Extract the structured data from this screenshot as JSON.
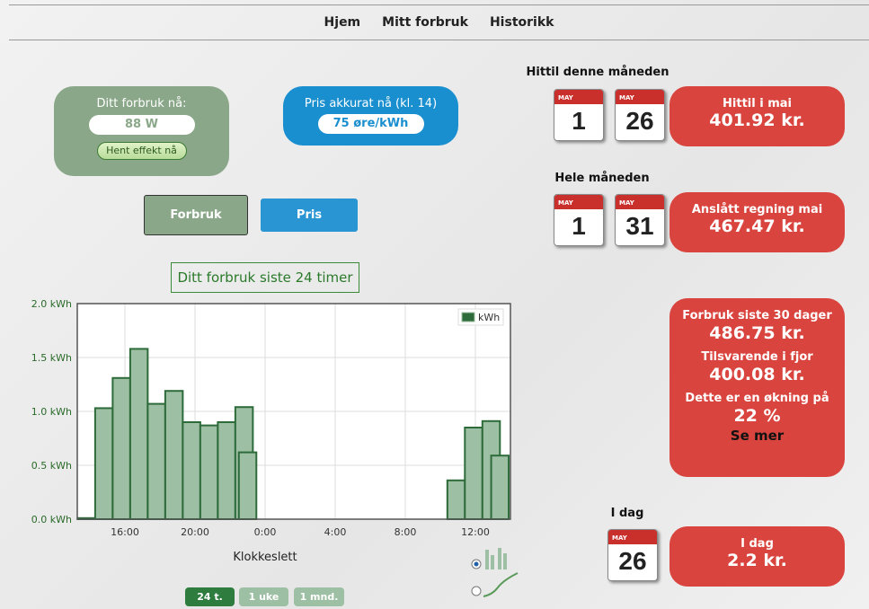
{
  "nav": [
    "Hjem",
    "Mitt forbruk",
    "Historikk"
  ],
  "consumption": {
    "label": "Ditt forbruk nå:",
    "value": "88 W",
    "button": "Hent effekt nå"
  },
  "price": {
    "label": "Pris akkurat nå (kl. 14)",
    "value": "75 øre/kWh"
  },
  "tabs": [
    "Forbruk",
    "Pris"
  ],
  "range_buttons": [
    "24 t.",
    "1 uke",
    "1 mnd."
  ],
  "month_to_date": {
    "heading": "Hittil denne måneden",
    "calendars": [
      {
        "month": "MAY",
        "day": "1"
      },
      {
        "month": "MAY",
        "day": "26"
      }
    ],
    "box": [
      "Hittil i mai",
      "401.92 kr."
    ]
  },
  "whole_month": {
    "heading": "Hele måneden",
    "calendars": [
      {
        "month": "MAY",
        "day": "1"
      },
      {
        "month": "MAY",
        "day": "31"
      }
    ],
    "box": [
      "Anslått regning mai",
      "467.47 kr."
    ]
  },
  "comparison": [
    "Forbruk siste 30 dager",
    "486.75 kr.",
    "Tilsvarende i fjor",
    "400.08 kr.",
    "Dette er en økning på",
    "22 %",
    "Se mer"
  ],
  "today": {
    "heading": "I dag",
    "calendars": [
      {
        "month": "MAY",
        "day": "26"
      }
    ],
    "box": [
      "I dag",
      "2.2 kr."
    ]
  },
  "chart_data": {
    "type": "bar",
    "title": "Ditt forbruk siste 24 timer",
    "x_label": "Klokkeslett",
    "x": [
      13.8,
      14.8,
      15.8,
      16.8,
      17.8,
      18.8,
      19.8,
      20.8,
      21.8,
      22.8,
      23.0,
      34.9,
      35.9,
      36.9,
      37.4
    ],
    "series": [
      {
        "name": "kWh",
        "color": "#9dbfa3",
        "values": [
          0.01,
          1.03,
          1.31,
          1.58,
          1.07,
          1.19,
          0.9,
          0.87,
          0.9,
          1.04,
          0.62,
          0.36,
          0.85,
          0.91,
          0.59
        ]
      }
    ],
    "xlim": [
      13.28,
      38.0
    ],
    "xticks": [
      {
        "value": 16,
        "label": "16:00"
      },
      {
        "value": 20,
        "label": "20:00"
      },
      {
        "value": 24,
        "label": "0:00"
      },
      {
        "value": 28,
        "label": "4:00"
      },
      {
        "value": 32,
        "label": "8:00"
      },
      {
        "value": 36,
        "label": "12:00"
      }
    ],
    "ylim": [
      0,
      2
    ],
    "yticks": [
      {
        "value": 0,
        "label": "0.0 kWh"
      },
      {
        "value": 0.5,
        "label": "0.5 kWh"
      },
      {
        "value": 1,
        "label": "1.0 kWh"
      },
      {
        "value": 1.5,
        "label": "1.5 kWh"
      },
      {
        "value": 2,
        "label": "2.0 kWh"
      }
    ],
    "grid": true,
    "legend": "top-right"
  }
}
